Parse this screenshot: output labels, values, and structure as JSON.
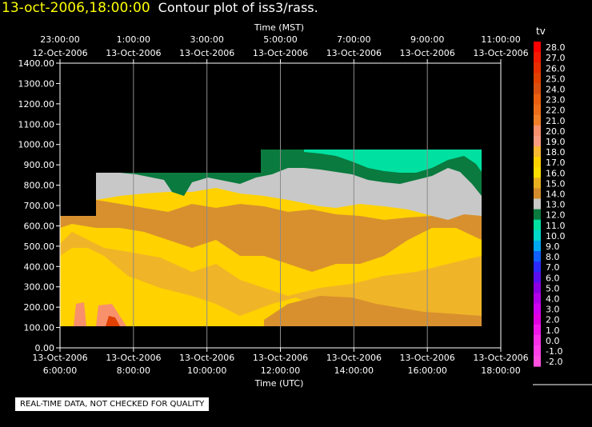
{
  "title": {
    "time": "13-oct-2006,18:00:00",
    "main": "Contour plot of iss3/rass."
  },
  "quality_note": "REAL-TIME DATA, NOT CHECKED FOR QUALITY",
  "chart_data": {
    "type": "heatmap",
    "x_top_label": "Time (MST)",
    "x_bottom_label": "Time (UTC)",
    "y_ticks": [
      "0.00",
      "100.00",
      "200.00",
      "300.00",
      "400.00",
      "500.00",
      "600.00",
      "700.00",
      "800.00",
      "900.00",
      "1000.00",
      "1100.00",
      "1200.00",
      "1300.00",
      "1400.00"
    ],
    "ylim": [
      0,
      1400
    ],
    "xlim_hours": [
      6.0,
      18.0
    ],
    "x_ticks_hours": [
      6,
      8,
      10,
      12,
      14,
      16,
      18
    ],
    "x_top_ticks": [
      {
        "time": "23:00:00",
        "date": "12-Oct-2006"
      },
      {
        "time": "1:00:00",
        "date": "13-Oct-2006"
      },
      {
        "time": "3:00:00",
        "date": "13-Oct-2006"
      },
      {
        "time": "5:00:00",
        "date": "13-Oct-2006"
      },
      {
        "time": "7:00:00",
        "date": "13-Oct-2006"
      },
      {
        "time": "9:00:00",
        "date": "13-Oct-2006"
      },
      {
        "time": "11:00:00",
        "date": "13-Oct-2006"
      }
    ],
    "x_bottom_ticks": [
      {
        "date": "13-Oct-2006",
        "time": "6:00:00"
      },
      {
        "date": "13-Oct-2006",
        "time": "8:00:00"
      },
      {
        "date": "13-Oct-2006",
        "time": "10:00:00"
      },
      {
        "date": "13-Oct-2006",
        "time": "12:00:00"
      },
      {
        "date": "13-Oct-2006",
        "time": "14:00:00"
      },
      {
        "date": "13-Oct-2006",
        "time": "16:00:00"
      },
      {
        "date": "13-Oct-2006",
        "time": "18:00:00"
      }
    ],
    "legend": {
      "label": "tv",
      "levels": [
        "28.0",
        "27.0",
        "26.0",
        "25.0",
        "24.0",
        "23.0",
        "22.0",
        "21.0",
        "20.0",
        "19.0",
        "18.0",
        "17.0",
        "16.0",
        "15.0",
        "14.0",
        "13.0",
        "12.0",
        "11.0",
        "10.0",
        "9.0",
        "8.0",
        "7.0",
        "6.0",
        "5.0",
        "4.0",
        "3.0",
        "2.0",
        "1.0",
        "0.0",
        "-1.0",
        "-2.0"
      ],
      "colors": [
        "#ff0000",
        "#f21a00",
        "#e82e00",
        "#e04000",
        "#d85010",
        "#e86010",
        "#ec6e18",
        "#f08028",
        "#f8906c",
        "#fa9c80",
        "#f7b832",
        "#ffd200",
        "#ffe000",
        "#e8b020",
        "#d28c2c",
        "#c8c8c8",
        "#0a7a3e",
        "#00e0a0",
        "#00d8c8",
        "#00a8f0",
        "#1060ff",
        "#2a2aff",
        "#5a10ee",
        "#8a00e0",
        "#b000e8",
        "#d000f0",
        "#e000e0",
        "#f018e8",
        "#f830e8",
        "#ff40e8",
        "#ff50e0"
      ]
    }
  }
}
